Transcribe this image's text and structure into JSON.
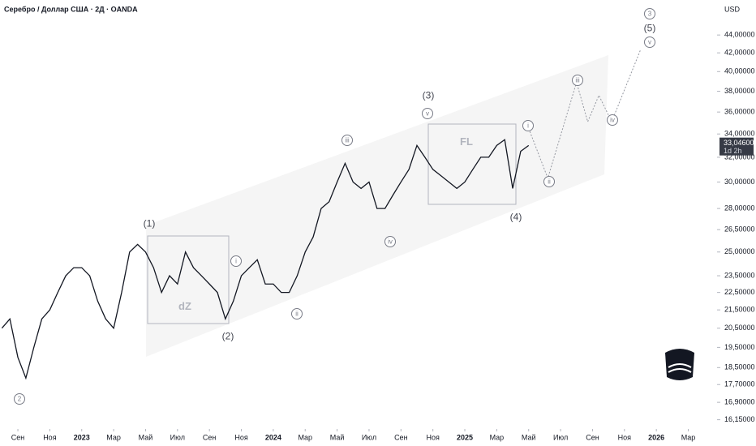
{
  "chart_data": {
    "type": "line",
    "title": "Серебро / Доллар США · 2Д · OANDA",
    "currency": "USD",
    "log_scale": true,
    "xlim": [
      -1.12,
      43.6
    ],
    "ylim": [
      15.9,
      48.2
    ],
    "xticks": [
      {
        "value": 0,
        "label": "Сен"
      },
      {
        "value": 2,
        "label": "Ноя"
      },
      {
        "value": 4,
        "label": "2023"
      },
      {
        "value": 6,
        "label": "Мар"
      },
      {
        "value": 8,
        "label": "Май"
      },
      {
        "value": 10,
        "label": "Июл"
      },
      {
        "value": 12,
        "label": "Сен"
      },
      {
        "value": 14,
        "label": "Ноя"
      },
      {
        "value": 16,
        "label": "2024"
      },
      {
        "value": 18,
        "label": "Мар"
      },
      {
        "value": 20,
        "label": "Май"
      },
      {
        "value": 22,
        "label": "Июл"
      },
      {
        "value": 24,
        "label": "Сен"
      },
      {
        "value": 26,
        "label": "Ноя"
      },
      {
        "value": 28,
        "label": "2025"
      },
      {
        "value": 30,
        "label": "Мар"
      },
      {
        "value": 32,
        "label": "Май"
      },
      {
        "value": 34,
        "label": "Июл"
      },
      {
        "value": 36,
        "label": "Сен"
      },
      {
        "value": 38,
        "label": "Ноя"
      },
      {
        "value": 40,
        "label": "2026"
      },
      {
        "value": 42,
        "label": "Мар"
      }
    ],
    "yticks": [
      {
        "value": 44,
        "label": "44,00000"
      },
      {
        "value": 42,
        "label": "42,00000"
      },
      {
        "value": 40,
        "label": "40,00000"
      },
      {
        "value": 38,
        "label": "38,00000"
      },
      {
        "value": 36,
        "label": "36,00000"
      },
      {
        "value": 34,
        "label": "34,00000"
      },
      {
        "value": 32,
        "label": "32,00000"
      },
      {
        "value": 30,
        "label": "30,00000"
      },
      {
        "value": 28,
        "label": "28,00000"
      },
      {
        "value": 26.5,
        "label": "26,50000"
      },
      {
        "value": 25,
        "label": "25,00000"
      },
      {
        "value": 23.5,
        "label": "23,50000"
      },
      {
        "value": 22.5,
        "label": "22,50000"
      },
      {
        "value": 21.5,
        "label": "21,50000"
      },
      {
        "value": 20.5,
        "label": "20,50000"
      },
      {
        "value": 19.5,
        "label": "19,50000"
      },
      {
        "value": 18.5,
        "label": "18,50000"
      },
      {
        "value": 17.7,
        "label": "17,70000"
      },
      {
        "value": 16.9,
        "label": "16,90000"
      },
      {
        "value": 16.15,
        "label": "16,15000"
      }
    ],
    "series": [
      {
        "color": "#131722",
        "x": [
          -1,
          -0.5,
          0,
          0.5,
          1,
          1.5,
          2,
          2.5,
          3,
          3.5,
          4,
          4.5,
          5,
          5.5,
          6,
          6.5,
          7,
          7.5,
          8,
          8.5,
          9,
          9.5,
          10,
          10.5,
          11,
          11.5,
          12,
          12.5,
          13,
          13.5,
          14,
          14.5,
          15,
          15.5,
          16,
          16.5,
          17,
          17.5,
          18,
          18.5,
          19,
          19.5,
          20,
          20.5,
          21,
          21.5,
          22,
          22.5,
          23,
          23.5,
          24,
          24.5,
          25,
          25.5,
          26,
          26.5,
          27,
          27.5,
          28,
          28.5,
          29,
          29.5,
          30,
          30.5,
          31,
          31.5,
          32
        ],
        "values": [
          20.5,
          21,
          19,
          18,
          19.5,
          21,
          21.5,
          22.5,
          23.5,
          24,
          24,
          23.5,
          22,
          21,
          20.5,
          22.5,
          25,
          25.5,
          25,
          24,
          22.5,
          23.5,
          23,
          25,
          24,
          23.5,
          23,
          22.5,
          21,
          22,
          23.5,
          24,
          24.5,
          23,
          23,
          22.5,
          22.5,
          23.5,
          25,
          26,
          28,
          28.5,
          30,
          31.5,
          30,
          29.5,
          30,
          28,
          28,
          29,
          30,
          31,
          33,
          32,
          31,
          30.5,
          30,
          29.5,
          30,
          31,
          32,
          32,
          33,
          33.5,
          29.5,
          32.5,
          33
        ]
      },
      {
        "color": "#9598a1",
        "x": [
          32.0,
          33.2,
          35.0,
          35.7,
          36.4,
          37.2,
          39.0
        ],
        "values": [
          34.5,
          30.3,
          38.9,
          35.1,
          37.6,
          35.1,
          42.3
        ]
      }
    ],
    "last_price": {
      "value": 33.046,
      "label": "33,04600"
    },
    "countdown": "1d 2h",
    "annotations": [
      "(1)",
      "(2)",
      "(3)",
      "(4)",
      "(5)",
      "3",
      "2",
      "i",
      "ii",
      "iii",
      "iv",
      "v",
      "i",
      "ii",
      "iii",
      "iv",
      "v",
      "dZ",
      "FL"
    ]
  }
}
